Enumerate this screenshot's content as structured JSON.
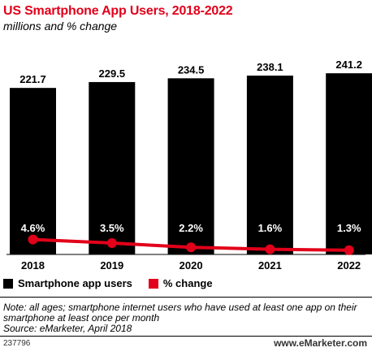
{
  "title": "US Smartphone App Users, 2018-2022",
  "subtitle": "millions and % change",
  "legend": {
    "series1": "Smartphone app users",
    "series2": "% change"
  },
  "note": "Note: all ages; smartphone internet users who have used at least one app on their smartphone at least once per month",
  "source": "Source: eMarketer, April 2018",
  "footer_id": "237796",
  "brand": "www.eMarketer.com",
  "colors": {
    "bar": "#000000",
    "line": "#e2001a",
    "title": "#e2001a"
  },
  "chart_data": {
    "type": "bar",
    "categories": [
      "2018",
      "2019",
      "2020",
      "2021",
      "2022"
    ],
    "series": [
      {
        "name": "Smartphone app users",
        "type": "bar",
        "values": [
          221.7,
          229.5,
          234.5,
          238.1,
          241.2
        ],
        "labels": [
          "221.7",
          "229.5",
          "234.5",
          "238.1",
          "241.2"
        ]
      },
      {
        "name": "% change",
        "type": "line",
        "values": [
          4.6,
          3.5,
          2.2,
          1.6,
          1.3
        ],
        "labels": [
          "4.6%",
          "3.5%",
          "2.2%",
          "1.6%",
          "1.3%"
        ]
      }
    ],
    "grid": false,
    "legend_position": "bottom-left"
  }
}
